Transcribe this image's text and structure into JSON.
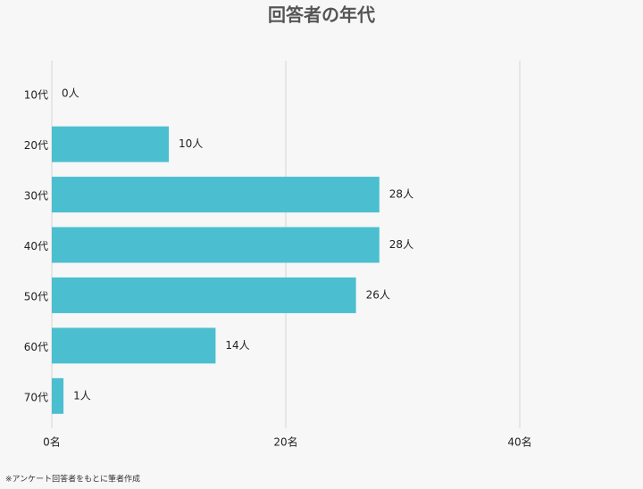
{
  "chart_data": {
    "type": "barh",
    "title": "回答者の年代",
    "categories": [
      "10代",
      "20代",
      "30代",
      "40代",
      "50代",
      "60代",
      "70代"
    ],
    "values": [
      0,
      10,
      28,
      28,
      26,
      14,
      1
    ],
    "value_labels": [
      "0人",
      "10人",
      "28人",
      "28人",
      "26人",
      "14人",
      "1人"
    ],
    "color": "#4bbfcf",
    "xlim": [
      0,
      50
    ],
    "xticks": [
      {
        "value": 0,
        "label": "0名"
      },
      {
        "value": 20,
        "label": "20名"
      },
      {
        "value": 40,
        "label": "40名"
      }
    ],
    "grid": true,
    "note": "※アンケート回答者をもとに筆者作成"
  }
}
